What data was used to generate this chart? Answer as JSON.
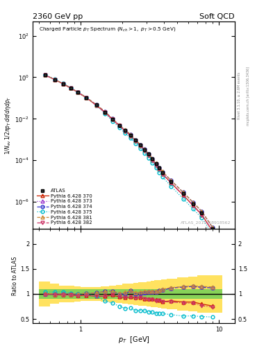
{
  "title_left": "2360 GeV pp",
  "title_right": "Soft QCD",
  "ylabel_main": "1/N_{ev} 1/2\\pi p_{T} d\\sigma/d\\eta dp_{T}",
  "ylabel_ratio": "Ratio to ATLAS",
  "xlabel": "p_{T}  [GeV]",
  "watermark": "ATLAS_2010_S8918562",
  "right_label1": "Rivet 3.1.10, ≥ 2.6M events",
  "right_label2": "mcplots.cern.ch [arXiv:1306.3436]",
  "pt_values": [
    0.55,
    0.65,
    0.75,
    0.85,
    0.95,
    1.1,
    1.3,
    1.5,
    1.7,
    1.9,
    2.1,
    2.3,
    2.5,
    2.7,
    2.9,
    3.1,
    3.3,
    3.5,
    3.7,
    3.9,
    4.5,
    5.5,
    6.5,
    7.5,
    9.0
  ],
  "atlas_data": [
    1.3,
    0.78,
    0.48,
    0.3,
    0.195,
    0.105,
    0.046,
    0.021,
    0.0094,
    0.0049,
    0.0028,
    0.0016,
    0.00093,
    0.00055,
    0.00033,
    0.000195,
    0.000115,
    6.8e-05,
    4.2e-05,
    2.6e-05,
    9.5e-06,
    2.5e-06,
    8e-07,
    3e-07,
    5e-08
  ],
  "py370": [
    1.3,
    0.77,
    0.47,
    0.295,
    0.188,
    0.102,
    0.044,
    0.02,
    0.0092,
    0.0046,
    0.0026,
    0.0015,
    0.00086,
    0.00051,
    0.0003,
    0.000175,
    0.000103,
    6e-05,
    3.7e-05,
    2.2e-05,
    8.2e-06,
    2.1e-06,
    6.7e-07,
    2.4e-07,
    3.8e-08
  ],
  "py373": [
    1.3,
    0.78,
    0.48,
    0.3,
    0.195,
    0.106,
    0.047,
    0.022,
    0.0099,
    0.0049,
    0.0028,
    0.0017,
    0.00093,
    0.00056,
    0.00034,
    0.000202,
    0.00012,
    7.1e-05,
    4.5e-05,
    2.8e-05,
    1.06e-05,
    2.85e-06,
    9.2e-07,
    3.4e-07,
    5.6e-08
  ],
  "py374": [
    1.3,
    0.78,
    0.48,
    0.3,
    0.195,
    0.106,
    0.047,
    0.022,
    0.0099,
    0.0049,
    0.0028,
    0.0017,
    0.00093,
    0.00056,
    0.00034,
    0.000202,
    0.00012,
    7.1e-05,
    4.5e-05,
    2.8e-05,
    1.06e-05,
    2.85e-06,
    9.2e-07,
    3.4e-07,
    5.6e-08
  ],
  "py375": [
    1.35,
    0.81,
    0.5,
    0.305,
    0.195,
    0.105,
    0.044,
    0.018,
    0.0077,
    0.0037,
    0.002,
    0.00115,
    0.00062,
    0.00037,
    0.00022,
    0.000126,
    7.3e-05,
    4.2e-05,
    2.6e-05,
    1.58e-05,
    5.6e-06,
    1.4e-06,
    4.5e-07,
    1.65e-07,
    2.7e-08
  ],
  "py381": [
    1.31,
    0.78,
    0.48,
    0.3,
    0.196,
    0.106,
    0.047,
    0.022,
    0.0099,
    0.005,
    0.0029,
    0.0017,
    0.00095,
    0.00057,
    0.00035,
    0.000205,
    0.000122,
    7.2e-05,
    4.5e-05,
    2.85e-05,
    1.07e-05,
    2.87e-06,
    9.3e-07,
    3.45e-07,
    5.7e-08
  ],
  "py382": [
    1.29,
    0.77,
    0.47,
    0.294,
    0.188,
    0.102,
    0.044,
    0.02,
    0.0092,
    0.0046,
    0.0026,
    0.0015,
    0.00085,
    0.00051,
    0.0003,
    0.000174,
    0.000102,
    5.9e-05,
    3.65e-05,
    2.2e-05,
    8e-06,
    2.05e-06,
    6.5e-07,
    2.3e-07,
    3.7e-08
  ],
  "ratio_pt": [
    0.55,
    0.65,
    0.75,
    0.85,
    0.95,
    1.1,
    1.3,
    1.5,
    1.7,
    1.9,
    2.1,
    2.3,
    2.5,
    2.7,
    2.9,
    3.1,
    3.3,
    3.5,
    3.7,
    3.9,
    4.5,
    5.5,
    6.5,
    7.5,
    9.0
  ],
  "ratio_370": [
    1.0,
    0.99,
    0.98,
    0.98,
    0.965,
    0.971,
    0.957,
    0.952,
    0.979,
    0.939,
    0.929,
    0.938,
    0.925,
    0.927,
    0.909,
    0.897,
    0.896,
    0.882,
    0.881,
    0.846,
    0.863,
    0.84,
    0.838,
    0.8,
    0.76
  ],
  "ratio_373": [
    1.0,
    1.0,
    1.0,
    1.0,
    1.0,
    1.01,
    1.022,
    1.048,
    1.053,
    1.0,
    1.0,
    1.063,
    1.0,
    1.018,
    1.03,
    1.036,
    1.043,
    1.044,
    1.071,
    1.077,
    1.116,
    1.14,
    1.15,
    1.133,
    1.12
  ],
  "ratio_374": [
    1.0,
    1.0,
    1.0,
    1.0,
    1.0,
    1.01,
    1.022,
    1.048,
    1.053,
    1.0,
    1.0,
    1.063,
    1.0,
    1.018,
    1.03,
    1.036,
    1.043,
    1.044,
    1.071,
    1.077,
    1.116,
    1.14,
    1.15,
    1.133,
    1.12
  ],
  "ratio_375": [
    1.038,
    1.038,
    1.042,
    1.017,
    1.0,
    1.0,
    0.957,
    0.857,
    0.819,
    0.755,
    0.714,
    0.719,
    0.667,
    0.673,
    0.667,
    0.646,
    0.635,
    0.618,
    0.619,
    0.608,
    0.589,
    0.56,
    0.563,
    0.55,
    0.54
  ],
  "ratio_381": [
    1.008,
    1.0,
    1.0,
    1.0,
    1.005,
    1.01,
    1.022,
    1.048,
    1.053,
    1.02,
    1.036,
    1.063,
    1.022,
    1.036,
    1.061,
    1.051,
    1.061,
    1.059,
    1.071,
    1.096,
    1.126,
    1.148,
    1.163,
    1.15,
    1.14
  ],
  "ratio_382": [
    0.992,
    0.987,
    0.979,
    0.98,
    0.964,
    0.971,
    0.957,
    0.952,
    0.979,
    0.939,
    0.929,
    0.938,
    0.914,
    0.927,
    0.909,
    0.892,
    0.887,
    0.868,
    0.869,
    0.846,
    0.842,
    0.82,
    0.813,
    0.767,
    0.74
  ],
  "band_pt_edges": [
    0.5,
    0.6,
    0.7,
    0.8,
    0.9,
    1.0,
    1.2,
    1.4,
    1.6,
    1.8,
    2.0,
    2.2,
    2.4,
    2.6,
    2.8,
    3.0,
    3.2,
    3.4,
    3.6,
    3.8,
    4.2,
    5.0,
    6.0,
    7.0,
    8.0,
    10.5
  ],
  "green_lo": [
    0.9,
    0.9,
    0.9,
    0.9,
    0.9,
    0.9,
    0.9,
    0.9,
    0.9,
    0.9,
    0.9,
    0.9,
    0.9,
    0.9,
    0.9,
    0.9,
    0.9,
    0.9,
    0.9,
    0.9,
    0.9,
    0.9,
    0.9,
    0.9,
    0.9
  ],
  "green_hi": [
    1.1,
    1.1,
    1.1,
    1.1,
    1.1,
    1.1,
    1.1,
    1.1,
    1.1,
    1.1,
    1.1,
    1.1,
    1.1,
    1.1,
    1.1,
    1.1,
    1.1,
    1.1,
    1.1,
    1.1,
    1.1,
    1.1,
    1.1,
    1.1,
    1.1
  ],
  "yellow_lo": [
    0.75,
    0.8,
    0.83,
    0.84,
    0.85,
    0.86,
    0.86,
    0.85,
    0.84,
    0.82,
    0.8,
    0.79,
    0.78,
    0.77,
    0.76,
    0.75,
    0.74,
    0.73,
    0.72,
    0.71,
    0.69,
    0.67,
    0.65,
    0.63,
    0.63
  ],
  "yellow_hi": [
    1.25,
    1.2,
    1.17,
    1.16,
    1.15,
    1.14,
    1.14,
    1.15,
    1.16,
    1.18,
    1.2,
    1.21,
    1.22,
    1.23,
    1.24,
    1.25,
    1.26,
    1.27,
    1.28,
    1.29,
    1.31,
    1.33,
    1.35,
    1.37,
    1.37
  ],
  "color_370": "#cc2200",
  "color_373": "#9933cc",
  "color_374": "#3333cc",
  "color_375": "#00bbcc",
  "color_381": "#cc8833",
  "color_382": "#cc3366",
  "atlas_color": "#000000",
  "green_color": "#55cc55",
  "yellow_color": "#ffdd44",
  "xlim": [
    0.45,
    13.0
  ],
  "ylim_main": [
    5e-08,
    500.0
  ],
  "ylim_ratio": [
    0.42,
    2.3
  ]
}
